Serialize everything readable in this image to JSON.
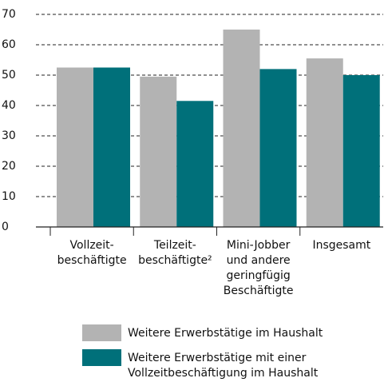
{
  "chart_data": {
    "type": "bar",
    "categories": [
      "Vollzeit-\nbeschäftigte",
      "Teilzeit-\nbeschäftigte²",
      "Mini-Jobber\nund andere\ngeringfügig\nBeschäftigte",
      "Insgesamt"
    ],
    "series": [
      {
        "name": "Weitere Erwerbstätige im Haushalt",
        "color": "#b3b3b3",
        "values": [
          52.5,
          49.5,
          65,
          55.5
        ]
      },
      {
        "name": "Weitere Erwerbstätige mit einer\nVollzeitbeschäftigung im Haushalt",
        "color": "#00707a",
        "values": [
          52.5,
          41.5,
          52,
          50
        ]
      }
    ],
    "ylim": [
      0,
      70
    ],
    "yticks": [
      0,
      10,
      20,
      30,
      40,
      50,
      60,
      70
    ],
    "grid": true
  }
}
